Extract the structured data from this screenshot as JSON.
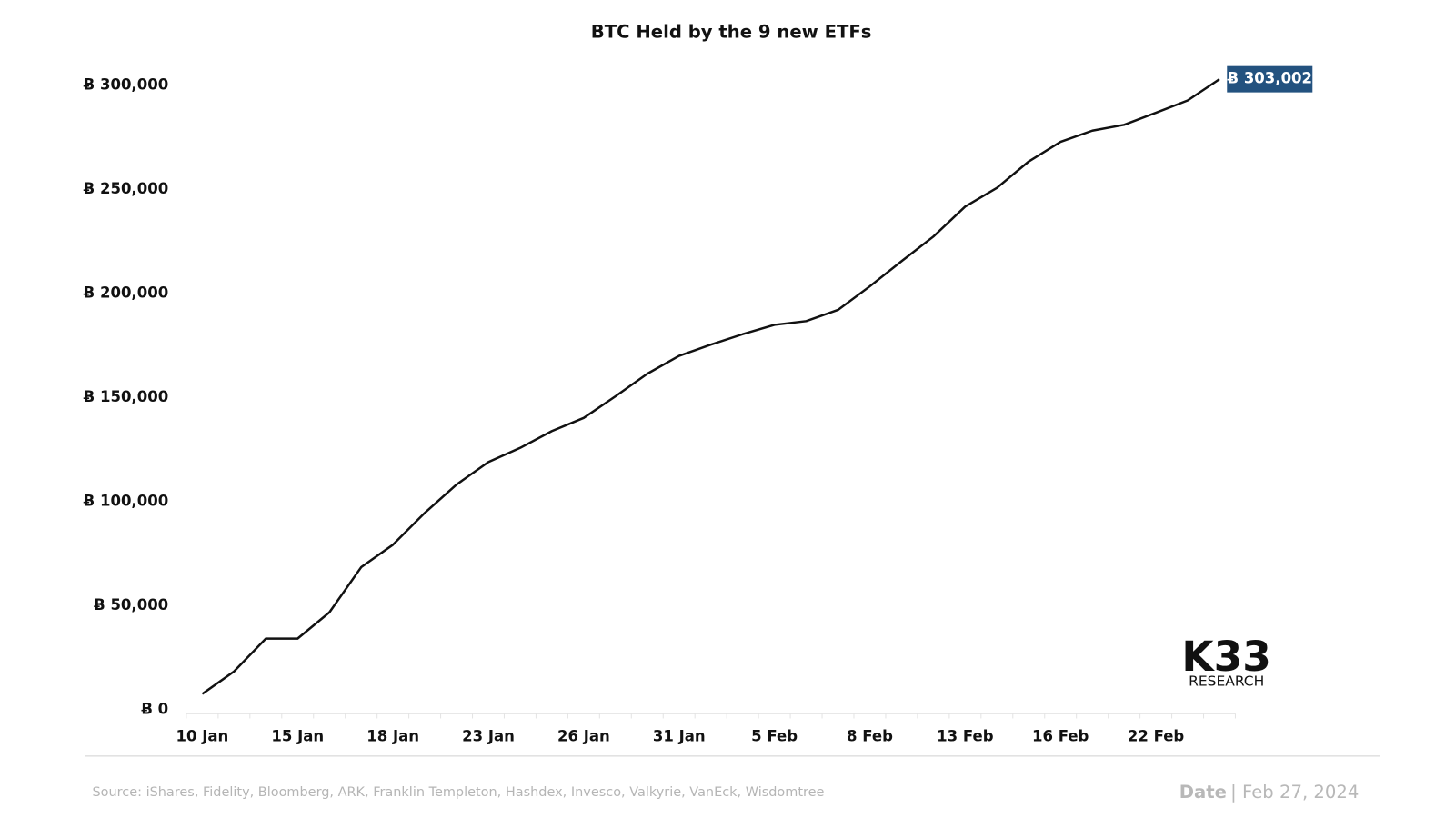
{
  "chart_data": {
    "type": "line",
    "title": "BTC Held by the 9 new ETFs",
    "categories": [
      "10 Jan",
      null,
      null,
      "15 Jan",
      null,
      null,
      "18 Jan",
      null,
      null,
      "23 Jan",
      null,
      null,
      "26 Jan",
      null,
      null,
      "31 Jan",
      null,
      null,
      "5 Feb",
      null,
      null,
      "8 Feb",
      null,
      null,
      "13 Feb",
      null,
      null,
      "16 Feb",
      null,
      null,
      "22 Feb",
      null,
      null
    ],
    "series": [
      {
        "name": "BTC Held",
        "color": "#111111",
        "values": [
          7700,
          18500,
          34300,
          34300,
          46900,
          68600,
          79400,
          94700,
          108300,
          119100,
          125900,
          134000,
          140300,
          150700,
          161500,
          170100,
          175500,
          180500,
          185000,
          186800,
          192200,
          203500,
          215600,
          227400,
          241800,
          250800,
          263500,
          272900,
          278300,
          281100,
          286900,
          292800,
          303002
        ],
        "value_labels": [
          null,
          null,
          null,
          null,
          null,
          null,
          null,
          null,
          null,
          null,
          null,
          null,
          null,
          null,
          null,
          null,
          null,
          null,
          null,
          null,
          null,
          null,
          null,
          null,
          null,
          null,
          null,
          null,
          null,
          null,
          null,
          null,
          "Ƀ 303,002"
        ]
      }
    ],
    "value_label_color": "#23527f",
    "ylim": [
      0,
      300000
    ],
    "yticks": [
      {
        "value": 0,
        "label": "Ƀ 0"
      },
      {
        "value": 50000,
        "label": "Ƀ 50,000"
      },
      {
        "value": 100000,
        "label": "Ƀ 100,000"
      },
      {
        "value": 150000,
        "label": "Ƀ 150,000"
      },
      {
        "value": 200000,
        "label": "Ƀ 200,000"
      },
      {
        "value": 250000,
        "label": "Ƀ 250,000"
      },
      {
        "value": 300000,
        "label": "Ƀ 300,000"
      }
    ],
    "grid": false,
    "source": "Source:  iShares, Fidelity, Bloomberg, ARK, Franklin Templeton, Hashdex, Invesco, Valkyrie, VanEck, Wisdomtree",
    "date_label": "Date",
    "date": "| Feb 27, 2024",
    "logo": {
      "main": "K33",
      "sub": "RESEARCH"
    }
  }
}
